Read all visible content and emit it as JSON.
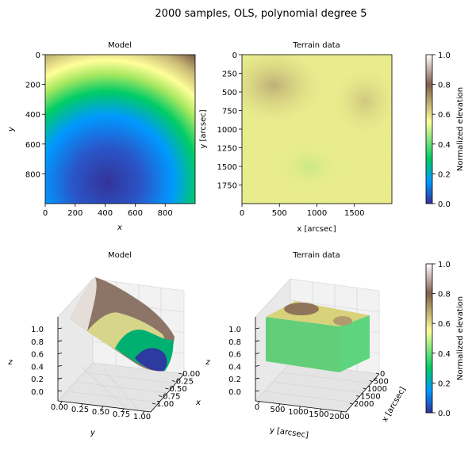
{
  "figure": {
    "suptitle": "2000 samples, OLS, polynomial degree 5"
  },
  "colors": {
    "colormap": "terrain",
    "stops": [
      "#333399",
      "#0099ff",
      "#00cc66",
      "#ffff99",
      "#80604c",
      "#ffffff"
    ]
  },
  "chart_data": [
    {
      "type": "heatmap",
      "title": "Model",
      "xlabel": "x",
      "ylabel": "y",
      "xlim": [
        0,
        1000
      ],
      "ylim": [
        1000,
        0
      ],
      "xticks": [
        "0",
        "200",
        "400",
        "600",
        "800"
      ],
      "yticks": [
        "0",
        "200",
        "400",
        "600",
        "800"
      ],
      "surface": "smooth bowl, minimum near x=430, y=880; maximum at top edge",
      "value_range": [
        0.0,
        1.0
      ]
    },
    {
      "type": "heatmap",
      "title": "Terrain data",
      "xlabel": "x [arcsec]",
      "ylabel": "y [arcsec]",
      "xlim": [
        0,
        2000
      ],
      "ylim": [
        2000,
        0
      ],
      "xticks": [
        "0",
        "500",
        "1000",
        "1500"
      ],
      "yticks": [
        "0",
        "250",
        "500",
        "750",
        "1000",
        "1250",
        "1500",
        "1750"
      ],
      "surface": "noisy terrain, mostly 0.5–0.6 with higher patches near (400,400) and (1600,600), lower patch near (950,1500)",
      "value_range": [
        0.45,
        0.7
      ]
    },
    {
      "type": "colorbar",
      "label": "Normalized elevation",
      "ticks": [
        "0.0",
        "0.2",
        "0.4",
        "0.6",
        "0.8",
        "1.0"
      ],
      "range": [
        0.0,
        1.0
      ]
    },
    {
      "type": "surface3d",
      "title": "Model",
      "xlabel": "x",
      "ylabel": "y",
      "zlabel": "z",
      "xticks": [
        "0.00",
        "0.25",
        "0.50",
        "0.75",
        "1.00"
      ],
      "yticks": [
        "0.00",
        "0.25",
        "0.50",
        "0.75",
        "1.00"
      ],
      "zticks": [
        "0.0",
        "0.2",
        "0.4",
        "0.6",
        "0.8",
        "1.0"
      ],
      "zlim": [
        0,
        1
      ]
    },
    {
      "type": "surface3d",
      "title": "Terrain data",
      "xlabel": "x [arcsec]",
      "ylabel": "y [arcsec]",
      "zlabel": "",
      "xticks": [
        "0",
        "500",
        "1000",
        "1500",
        "2000"
      ],
      "yticks": [
        "0",
        "500",
        "1000",
        "1500",
        "2000"
      ],
      "zticks": [
        "0.0",
        "0.2",
        "0.4",
        "0.6",
        "0.8",
        "1.0"
      ],
      "zlim": [
        0,
        1
      ]
    },
    {
      "type": "colorbar",
      "label": "Normalized elevation",
      "ticks": [
        "0.0",
        "0.2",
        "0.4",
        "0.6",
        "0.8",
        "1.0"
      ],
      "range": [
        0.0,
        1.0
      ]
    }
  ]
}
